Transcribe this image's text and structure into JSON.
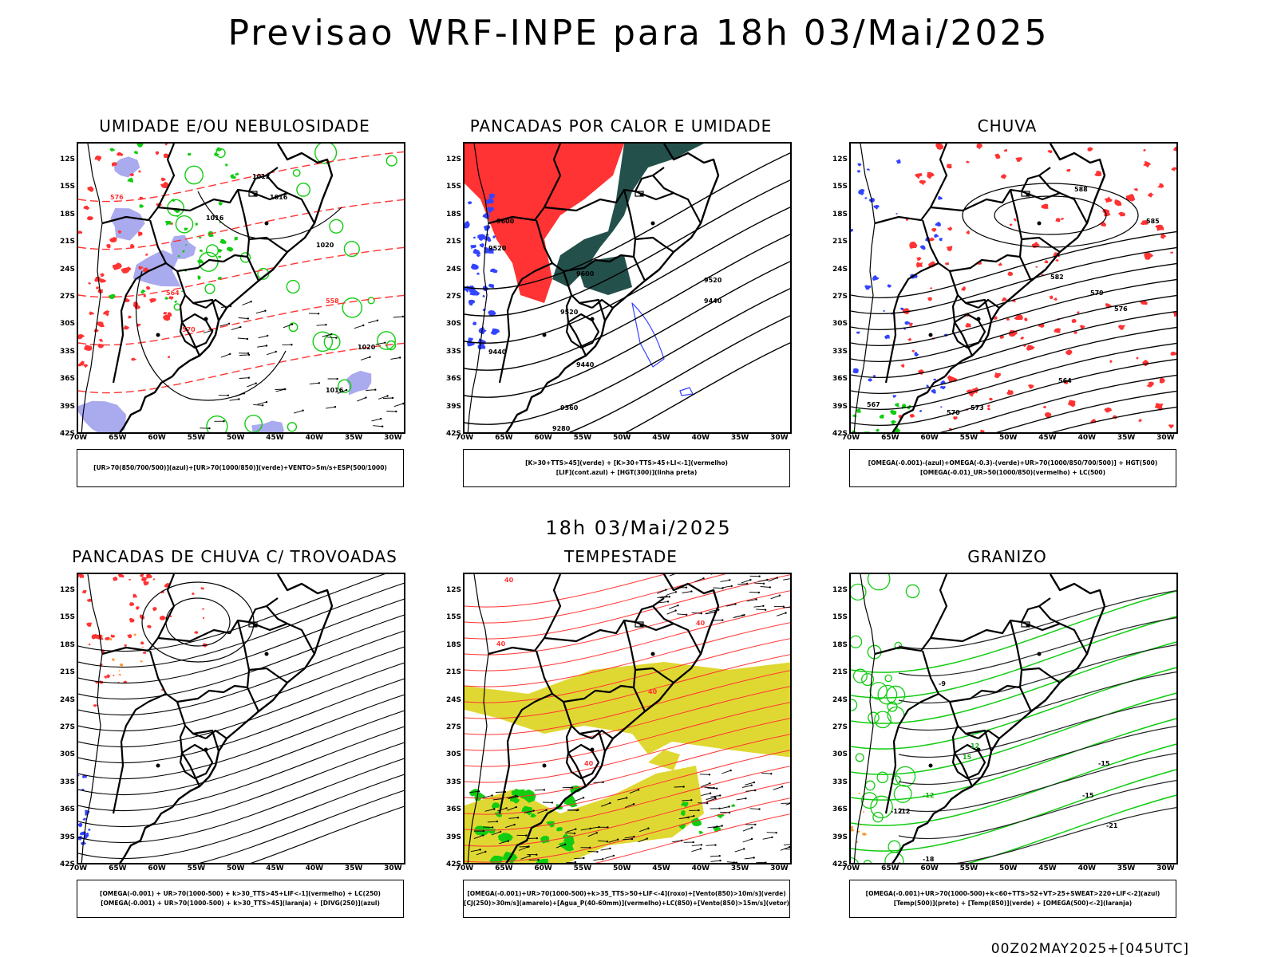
{
  "header": {
    "title": "Previsao WRF-INPE  para 18h 03/Mai/2025"
  },
  "mid_title": "18h 03/Mai/2025",
  "footer": "00Z02MAY2025+[045UTC]",
  "axes": {
    "lat_labels": [
      "12S",
      "15S",
      "18S",
      "21S",
      "24S",
      "27S",
      "30S",
      "33S",
      "36S",
      "39S",
      "42S"
    ],
    "lon_labels": [
      "70W",
      "65W",
      "60W",
      "55W",
      "50W",
      "45W",
      "40W",
      "35W",
      "30W"
    ]
  },
  "panels": [
    {
      "title": "UMIDADE E/OU NEBULOSIDADE",
      "legend": [
        "[UR>70(850/700/500)](azul)+[UR>70(1000/850)](verde)+VENTO>5m/s+ESP(500/1000)"
      ],
      "contour_labels": [
        "1012",
        "1016",
        "1016",
        "1020",
        "1020",
        "1016",
        "570",
        "576",
        "564",
        "558"
      ]
    },
    {
      "title": "PANCADAS POR CALOR E UMIDADE",
      "legend": [
        "[K>30+TTS>45](verde)  +  [K>30+TTS>45+LI<-1](vermelho)",
        "[LIF](cont.azul)  +  [HGT(300)](linha preta)"
      ],
      "contour_labels": [
        "9600",
        "9520",
        "9600",
        "9520",
        "9440",
        "9440",
        "9360",
        "9280",
        "9520",
        "9440"
      ]
    },
    {
      "title": "CHUVA",
      "legend": [
        "[OMEGA(-0.001)-(azul)+OMEGA(-0.3)-(verde)+UR>70(1000/850/700/500)]  +  HGT(500)",
        "[OMEGA(-0.01)_UR>50(1000/850)(vermelho)  +  LC(500)"
      ],
      "contour_labels": [
        "588",
        "585",
        "582",
        "579",
        "576",
        "573",
        "570",
        "567",
        "564"
      ]
    },
    {
      "title": "PANCADAS DE CHUVA C/ TROVOADAS",
      "legend": [
        "[OMEGA(-0.001)  +  UR>70(1000-500)  +  k>30_TTS>45+LIF<-1](vermelho)  +  LC(250)",
        "[OMEGA(-0.001)  +  UR>70(1000-500)  +  k>30_TTS>45](laranja)  +  [DIVG(250)](azul)"
      ],
      "contour_labels": []
    },
    {
      "title": "TEMPESTADE",
      "legend": [
        "[OMEGA(-0.001)+UR>70(1000-500)+k>35_TTS>50+LIF<-4](roxo)+[Vento(850)>10m/s](verde)",
        "[CJ(250)>30m/s](amarelo)+[Agua_P(40-60mm)](vermelho)+LC(850)+[Vento(850)>15m/s](vetor)"
      ],
      "contour_labels": [
        "40",
        "40",
        "40",
        "40",
        "40"
      ]
    },
    {
      "title": "GRANIZO",
      "legend": [
        "[OMEGA(-0.001)+UR>70(1000-500)+k<60+TTS>52+VT>25+SWEAT>220+LIF<-2](azul)",
        "[Temp(500)](preto)  +  [Temp(850)](verde)  +  [OMEGA(500)<-2](laranja)"
      ],
      "contour_labels": [
        "-9",
        "-12",
        "-15",
        "15",
        "12",
        "-12",
        "-15",
        "-18",
        "-21",
        "-12"
      ]
    }
  ],
  "colors": {
    "red": "#ff3333",
    "green": "#11cc11",
    "blue": "#3344ff",
    "lavender": "#aaaaee",
    "darkteal": "#24504c",
    "yellow": "#e0d832",
    "black": "#000000"
  }
}
